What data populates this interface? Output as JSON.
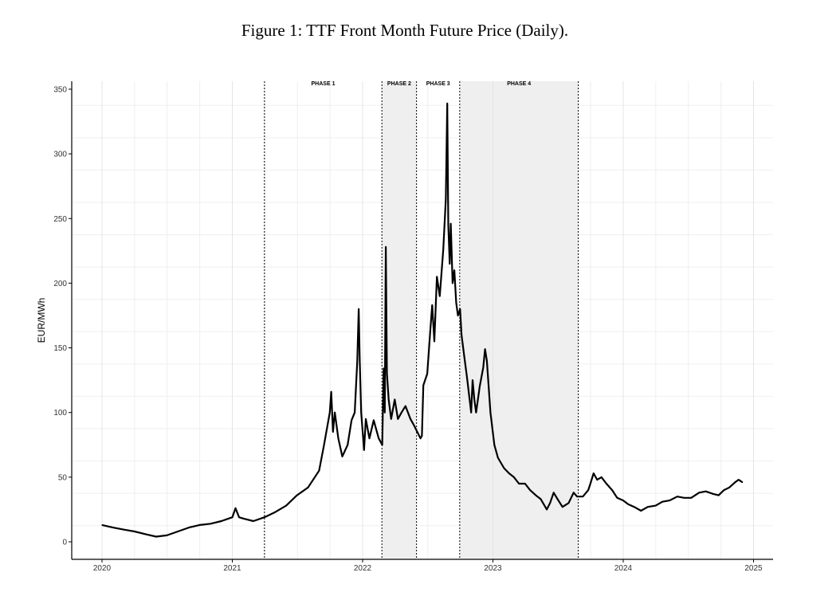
{
  "chart_data": {
    "type": "line",
    "title": "Figure 1:  TTF Front Month Future Price (Daily).",
    "xlabel": "",
    "ylabel": "EUR/MWh",
    "xlim": [
      "2019-10-01",
      "2025-03-01"
    ],
    "ylim": [
      -12,
      355
    ],
    "x_ticks": [
      "2020",
      "2021",
      "2022",
      "2023",
      "2024",
      "2025"
    ],
    "y_ticks": [
      0,
      50,
      100,
      150,
      200,
      250,
      300,
      350
    ],
    "grid": true,
    "line_color": "#000000",
    "shade_color": "#efefef",
    "phases": [
      {
        "label": "PHASE 1",
        "start": "2021-04-01",
        "end": "2022-02-24",
        "shaded": false
      },
      {
        "label": "PHASE 2",
        "start": "2022-02-24",
        "end": "2022-06-01",
        "shaded": true
      },
      {
        "label": "PHASE 3",
        "start": "2022-06-01",
        "end": "2022-09-30",
        "shaded": false
      },
      {
        "label": "PHASE 4",
        "start": "2022-09-30",
        "end": "2023-08-28",
        "shaded": true
      }
    ],
    "series": [
      {
        "points": [
          [
            "2020-01-01",
            13
          ],
          [
            "2020-02-01",
            11
          ],
          [
            "2020-03-01",
            9.5
          ],
          [
            "2020-04-01",
            8
          ],
          [
            "2020-05-01",
            6
          ],
          [
            "2020-06-01",
            4
          ],
          [
            "2020-07-01",
            5
          ],
          [
            "2020-08-01",
            8
          ],
          [
            "2020-09-01",
            11
          ],
          [
            "2020-10-01",
            13
          ],
          [
            "2020-11-01",
            14
          ],
          [
            "2020-12-01",
            16
          ],
          [
            "2021-01-01",
            19
          ],
          [
            "2021-01-10",
            26
          ],
          [
            "2021-01-20",
            19
          ],
          [
            "2021-02-01",
            18
          ],
          [
            "2021-03-01",
            16
          ],
          [
            "2021-04-01",
            19
          ],
          [
            "2021-05-01",
            23
          ],
          [
            "2021-06-01",
            28
          ],
          [
            "2021-07-01",
            36
          ],
          [
            "2021-08-01",
            42
          ],
          [
            "2021-09-01",
            55
          ],
          [
            "2021-09-15",
            75
          ],
          [
            "2021-10-01",
            100
          ],
          [
            "2021-10-05",
            116
          ],
          [
            "2021-10-10",
            85
          ],
          [
            "2021-10-15",
            100
          ],
          [
            "2021-10-25",
            80
          ],
          [
            "2021-11-05",
            66
          ],
          [
            "2021-11-20",
            75
          ],
          [
            "2021-12-01",
            94
          ],
          [
            "2021-12-10",
            100
          ],
          [
            "2021-12-17",
            140
          ],
          [
            "2021-12-21",
            180
          ],
          [
            "2021-12-24",
            140
          ],
          [
            "2021-12-28",
            100
          ],
          [
            "2022-01-05",
            71
          ],
          [
            "2022-01-10",
            95
          ],
          [
            "2022-01-20",
            80
          ],
          [
            "2022-02-01",
            94
          ],
          [
            "2022-02-15",
            80
          ],
          [
            "2022-02-25",
            75
          ],
          [
            "2022-03-01",
            134
          ],
          [
            "2022-03-04",
            100
          ],
          [
            "2022-03-07",
            228
          ],
          [
            "2022-03-10",
            130
          ],
          [
            "2022-03-15",
            110
          ],
          [
            "2022-03-22",
            95
          ],
          [
            "2022-04-01",
            110
          ],
          [
            "2022-04-10",
            95
          ],
          [
            "2022-04-20",
            100
          ],
          [
            "2022-05-01",
            105
          ],
          [
            "2022-05-15",
            95
          ],
          [
            "2022-05-25",
            90
          ],
          [
            "2022-06-05",
            84
          ],
          [
            "2022-06-12",
            80
          ],
          [
            "2022-06-16",
            82
          ],
          [
            "2022-06-20",
            121
          ],
          [
            "2022-07-01",
            130
          ],
          [
            "2022-07-10",
            165
          ],
          [
            "2022-07-15",
            183
          ],
          [
            "2022-07-21",
            155
          ],
          [
            "2022-07-28",
            205
          ],
          [
            "2022-08-05",
            190
          ],
          [
            "2022-08-15",
            226
          ],
          [
            "2022-08-22",
            265
          ],
          [
            "2022-08-26",
            339
          ],
          [
            "2022-08-29",
            245
          ],
          [
            "2022-09-02",
            215
          ],
          [
            "2022-09-05",
            246
          ],
          [
            "2022-09-10",
            200
          ],
          [
            "2022-09-15",
            210
          ],
          [
            "2022-09-20",
            185
          ],
          [
            "2022-09-25",
            175
          ],
          [
            "2022-10-01",
            180
          ],
          [
            "2022-10-05",
            160
          ],
          [
            "2022-10-12",
            145
          ],
          [
            "2022-10-20",
            128
          ],
          [
            "2022-11-01",
            100
          ],
          [
            "2022-11-05",
            125
          ],
          [
            "2022-11-10",
            110
          ],
          [
            "2022-11-15",
            100
          ],
          [
            "2022-11-25",
            120
          ],
          [
            "2022-12-05",
            135
          ],
          [
            "2022-12-10",
            149
          ],
          [
            "2022-12-15",
            140
          ],
          [
            "2022-12-25",
            100
          ],
          [
            "2023-01-05",
            75
          ],
          [
            "2023-01-15",
            65
          ],
          [
            "2023-02-01",
            57
          ],
          [
            "2023-02-15",
            53
          ],
          [
            "2023-03-01",
            50
          ],
          [
            "2023-03-15",
            45
          ],
          [
            "2023-04-01",
            45
          ],
          [
            "2023-04-15",
            40
          ],
          [
            "2023-05-01",
            36
          ],
          [
            "2023-05-15",
            33
          ],
          [
            "2023-06-01",
            25
          ],
          [
            "2023-06-10",
            30
          ],
          [
            "2023-06-20",
            38
          ],
          [
            "2023-07-01",
            33
          ],
          [
            "2023-07-15",
            27
          ],
          [
            "2023-08-01",
            30
          ],
          [
            "2023-08-15",
            38
          ],
          [
            "2023-08-25",
            35
          ],
          [
            "2023-09-10",
            35
          ],
          [
            "2023-09-25",
            40
          ],
          [
            "2023-10-01",
            45
          ],
          [
            "2023-10-10",
            53
          ],
          [
            "2023-10-20",
            48
          ],
          [
            "2023-11-01",
            50
          ],
          [
            "2023-11-15",
            45
          ],
          [
            "2023-12-01",
            40
          ],
          [
            "2023-12-15",
            34
          ],
          [
            "2024-01-01",
            32
          ],
          [
            "2024-01-15",
            29
          ],
          [
            "2024-02-01",
            27
          ],
          [
            "2024-02-20",
            24
          ],
          [
            "2024-03-10",
            27
          ],
          [
            "2024-04-01",
            28
          ],
          [
            "2024-04-20",
            31
          ],
          [
            "2024-05-10",
            32
          ],
          [
            "2024-06-01",
            35
          ],
          [
            "2024-06-20",
            34
          ],
          [
            "2024-07-10",
            34
          ],
          [
            "2024-08-01",
            38
          ],
          [
            "2024-08-20",
            39
          ],
          [
            "2024-09-10",
            37
          ],
          [
            "2024-09-25",
            36
          ],
          [
            "2024-10-10",
            40
          ],
          [
            "2024-10-25",
            42
          ],
          [
            "2024-11-10",
            46
          ],
          [
            "2024-11-20",
            48
          ],
          [
            "2024-12-01",
            46
          ]
        ]
      }
    ]
  }
}
